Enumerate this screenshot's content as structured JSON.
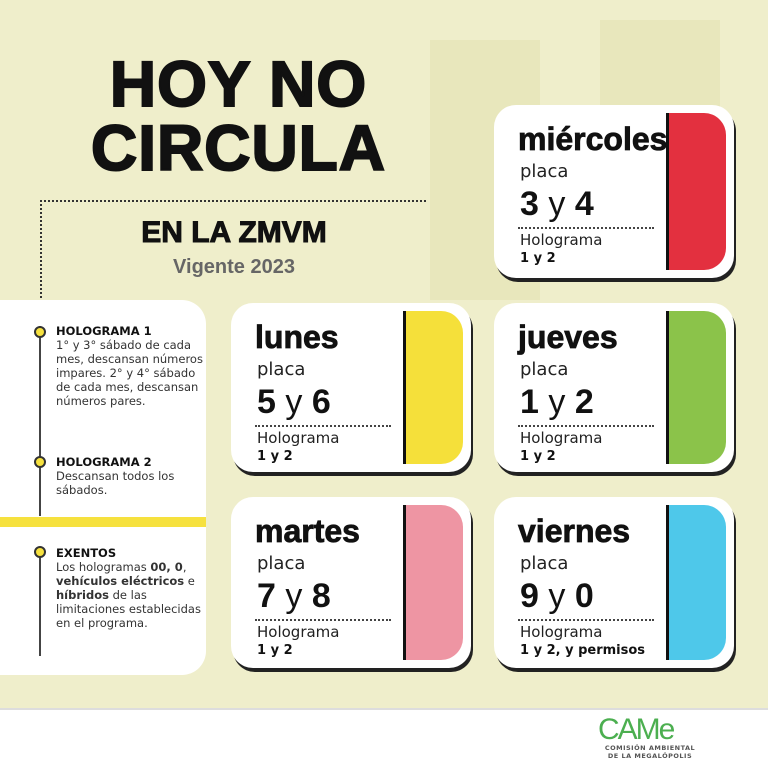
{
  "header": {
    "line1": "HOY NO",
    "line2": "CIRCULA",
    "subtitle": "EN LA ZMVM",
    "validity": "Vigente 2023"
  },
  "notes": [
    {
      "title": "HOLOGRAMA 1",
      "text": "1° y 3° sábado de cada mes, descansan números impares. 2° y 4° sábado de cada mes, descansan números pares."
    },
    {
      "title": "HOLOGRAMA 2",
      "text": "Descansan todos los sábados."
    },
    {
      "title": "EXENTOS",
      "parts": [
        "Los hologramas ",
        "00, 0",
        ", ",
        "vehículos  eléctricos",
        " e ",
        "híbridos",
        " de las limitaciones establecidas en el programa."
      ]
    }
  ],
  "cards": [
    {
      "day": "miércoles",
      "placa_label": "placa",
      "a": "3",
      "y": "y",
      "b": "4",
      "holo_label": "Holograma",
      "holo": "1 y 2",
      "color": "#e3303f"
    },
    {
      "day": "lunes",
      "placa_label": "placa",
      "a": "5",
      "y": "y",
      "b": "6",
      "holo_label": "Holograma",
      "holo": "1 y 2",
      "color": "#f5e03a"
    },
    {
      "day": "jueves",
      "placa_label": "placa",
      "a": "1",
      "y": "y",
      "b": "2",
      "holo_label": "Holograma",
      "holo": "1 y 2",
      "color": "#8bc34a"
    },
    {
      "day": "martes",
      "placa_label": "placa",
      "a": "7",
      "y": "y",
      "b": "8",
      "holo_label": "Holograma",
      "holo": "1 y 2",
      "color": "#ee95a3"
    },
    {
      "day": "viernes",
      "placa_label": "placa",
      "a": "9",
      "y": "y",
      "b": "0",
      "holo_label": "Holograma",
      "holo": "1 y 2, y permisos",
      "color": "#4ec8ea"
    }
  ],
  "footer": {
    "logo": "CAMe",
    "org_line1": "COMISIÓN AMBIENTAL",
    "org_line2": "DE LA MEGALÓPOLIS"
  }
}
